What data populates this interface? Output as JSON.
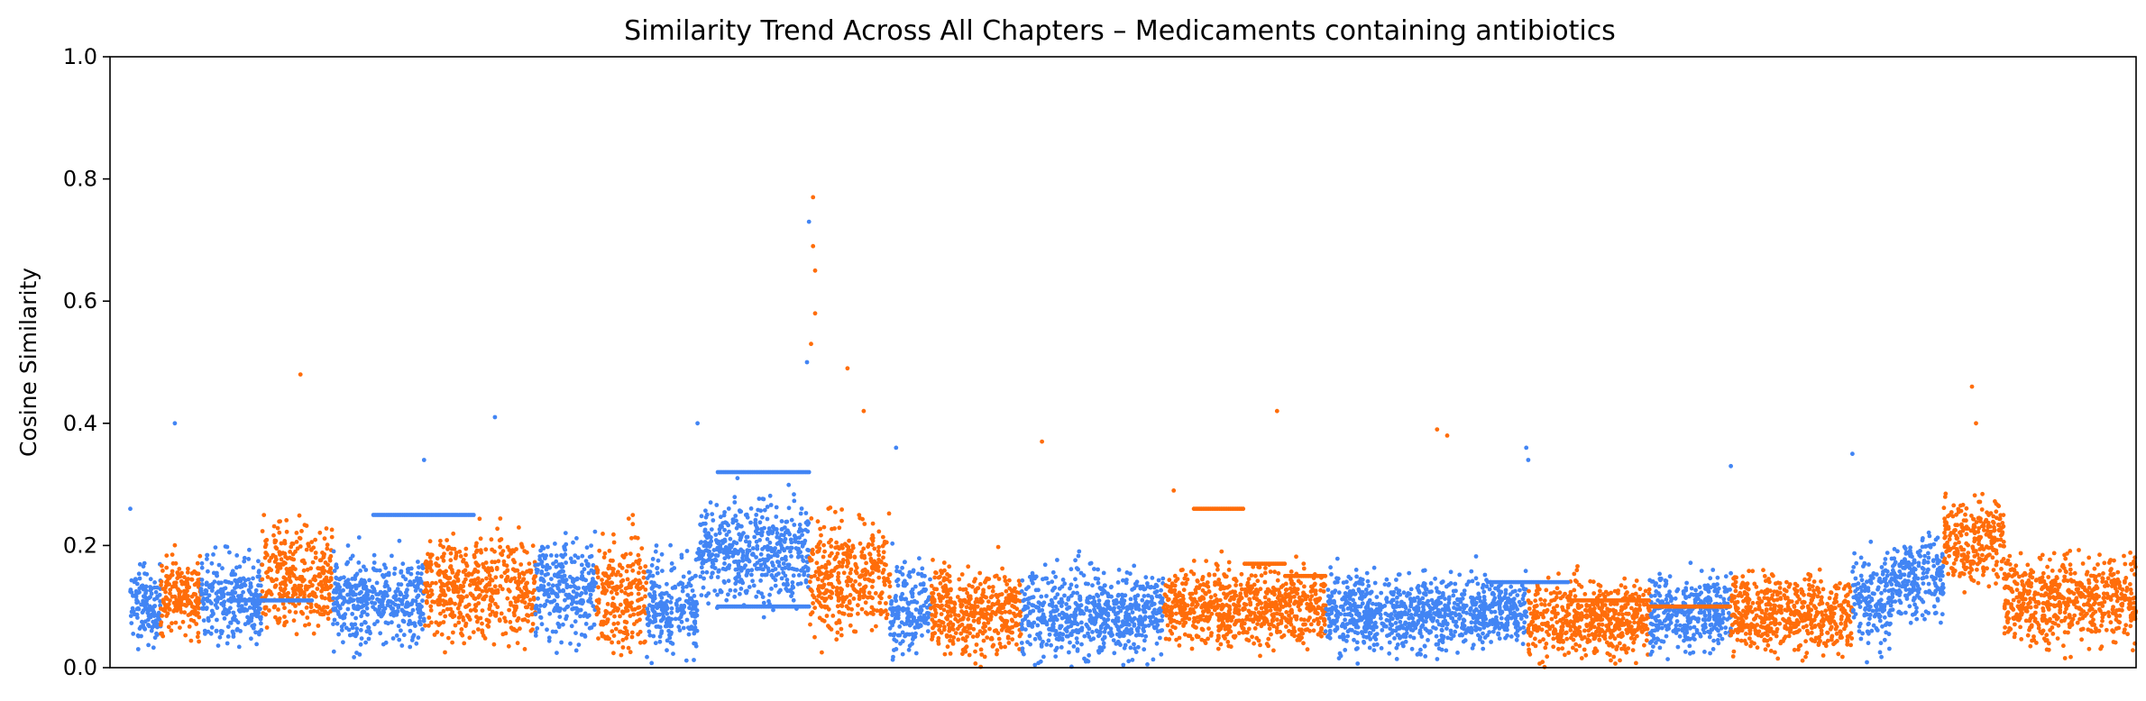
{
  "chart_data": {
    "type": "scatter",
    "title": "Similarity Trend Across All Chapters – Medicaments containing antibiotics",
    "xlabel": "",
    "ylabel": "Cosine Similarity",
    "ylim": [
      0,
      1
    ],
    "yticks": [
      {
        "value": 0.0,
        "label": "0.0"
      },
      {
        "value": 0.2,
        "label": "0.2"
      },
      {
        "value": 0.4,
        "label": "0.4"
      },
      {
        "value": 0.6,
        "label": "0.6"
      },
      {
        "value": 0.8,
        "label": "0.8"
      },
      {
        "value": 1.0,
        "label": "1.0"
      }
    ],
    "xlim": [
      0,
      1000
    ],
    "grid": false,
    "legend": "none",
    "colors": {
      "blue": "#4285f4",
      "orange": "#ff6d0a"
    },
    "series": [
      {
        "name": "chapter-group-blue",
        "color": "#4285f4"
      },
      {
        "name": "chapter-group-orange",
        "color": "#ff6d0a"
      }
    ],
    "segments": [
      {
        "x": [
          10,
          25
        ],
        "center": 0.1,
        "spread": 0.06,
        "color": "blue"
      },
      {
        "x": [
          25,
          45
        ],
        "center": 0.12,
        "spread": 0.06,
        "color": "orange"
      },
      {
        "x": [
          45,
          75
        ],
        "center": 0.11,
        "spread": 0.07,
        "color": "blue"
      },
      {
        "x": [
          75,
          110
        ],
        "center": 0.15,
        "spread": 0.08,
        "color": "orange"
      },
      {
        "x": [
          110,
          155
        ],
        "center": 0.11,
        "spread": 0.07,
        "color": "blue"
      },
      {
        "x": [
          155,
          210
        ],
        "center": 0.13,
        "spread": 0.08,
        "color": "orange"
      },
      {
        "x": [
          210,
          240
        ],
        "center": 0.13,
        "spread": 0.08,
        "color": "blue"
      },
      {
        "x": [
          240,
          265
        ],
        "center": 0.12,
        "spread": 0.09,
        "color": "orange"
      },
      {
        "x": [
          265,
          290
        ],
        "center": 0.1,
        "spread": 0.08,
        "color": "blue"
      },
      {
        "x": [
          290,
          345
        ],
        "center": 0.19,
        "spread": 0.08,
        "color": "blue"
      },
      {
        "x": [
          345,
          385
        ],
        "center": 0.15,
        "spread": 0.09,
        "color": "orange"
      },
      {
        "x": [
          385,
          405
        ],
        "center": 0.1,
        "spread": 0.07,
        "color": "blue"
      },
      {
        "x": [
          405,
          450
        ],
        "center": 0.09,
        "spread": 0.07,
        "color": "orange"
      },
      {
        "x": [
          450,
          520
        ],
        "center": 0.09,
        "spread": 0.07,
        "color": "blue"
      },
      {
        "x": [
          520,
          600
        ],
        "center": 0.1,
        "spread": 0.06,
        "color": "orange"
      },
      {
        "x": [
          600,
          700
        ],
        "center": 0.09,
        "spread": 0.06,
        "color": "blue"
      },
      {
        "x": [
          700,
          760
        ],
        "center": 0.08,
        "spread": 0.06,
        "color": "orange"
      },
      {
        "x": [
          760,
          800
        ],
        "center": 0.09,
        "spread": 0.06,
        "color": "blue"
      },
      {
        "x": [
          800,
          860
        ],
        "center": 0.09,
        "spread": 0.06,
        "color": "orange"
      },
      {
        "x": [
          860,
          880
        ],
        "center": 0.11,
        "spread": 0.07,
        "color": "blue"
      },
      {
        "x": [
          880,
          905
        ],
        "center": 0.15,
        "spread": 0.07,
        "color": "blue"
      },
      {
        "x": [
          905,
          935
        ],
        "center": 0.21,
        "spread": 0.07,
        "color": "orange"
      },
      {
        "x": [
          935,
          1000
        ],
        "center": 0.11,
        "spread": 0.07,
        "color": "orange"
      }
    ],
    "outliers": [
      {
        "x": 10,
        "y": 0.26,
        "color": "blue"
      },
      {
        "x": 32,
        "y": 0.4,
        "color": "blue"
      },
      {
        "x": 94,
        "y": 0.48,
        "color": "orange"
      },
      {
        "x": 155,
        "y": 0.34,
        "color": "blue"
      },
      {
        "x": 190,
        "y": 0.41,
        "color": "blue"
      },
      {
        "x": 290,
        "y": 0.4,
        "color": "blue"
      },
      {
        "x": 347,
        "y": 0.77,
        "color": "orange"
      },
      {
        "x": 347,
        "y": 0.69,
        "color": "orange"
      },
      {
        "x": 348,
        "y": 0.65,
        "color": "orange"
      },
      {
        "x": 345,
        "y": 0.73,
        "color": "blue"
      },
      {
        "x": 348,
        "y": 0.58,
        "color": "orange"
      },
      {
        "x": 346,
        "y": 0.53,
        "color": "orange"
      },
      {
        "x": 344,
        "y": 0.5,
        "color": "blue"
      },
      {
        "x": 364,
        "y": 0.49,
        "color": "orange"
      },
      {
        "x": 372,
        "y": 0.42,
        "color": "orange"
      },
      {
        "x": 388,
        "y": 0.36,
        "color": "blue"
      },
      {
        "x": 460,
        "y": 0.37,
        "color": "orange"
      },
      {
        "x": 525,
        "y": 0.29,
        "color": "orange"
      },
      {
        "x": 576,
        "y": 0.42,
        "color": "orange"
      },
      {
        "x": 655,
        "y": 0.39,
        "color": "orange"
      },
      {
        "x": 660,
        "y": 0.38,
        "color": "orange"
      },
      {
        "x": 699,
        "y": 0.36,
        "color": "blue"
      },
      {
        "x": 700,
        "y": 0.34,
        "color": "blue"
      },
      {
        "x": 800,
        "y": 0.33,
        "color": "blue"
      },
      {
        "x": 860,
        "y": 0.35,
        "color": "blue"
      },
      {
        "x": 919,
        "y": 0.46,
        "color": "orange"
      },
      {
        "x": 921,
        "y": 0.4,
        "color": "orange"
      }
    ],
    "bands": [
      {
        "x": [
          300,
          345
        ],
        "y": 0.32,
        "color": "blue"
      },
      {
        "x": [
          300,
          345
        ],
        "y": 0.1,
        "color": "blue"
      },
      {
        "x": [
          535,
          560
        ],
        "y": 0.26,
        "color": "orange"
      },
      {
        "x": [
          560,
          580
        ],
        "y": 0.17,
        "color": "orange"
      },
      {
        "x": [
          580,
          600
        ],
        "y": 0.15,
        "color": "orange"
      },
      {
        "x": [
          680,
          720
        ],
        "y": 0.14,
        "color": "blue"
      },
      {
        "x": [
          720,
          760
        ],
        "y": 0.11,
        "color": "orange"
      },
      {
        "x": [
          760,
          800
        ],
        "y": 0.1,
        "color": "orange"
      },
      {
        "x": [
          130,
          180
        ],
        "y": 0.25,
        "color": "blue"
      },
      {
        "x": [
          60,
          100
        ],
        "y": 0.11,
        "color": "blue"
      }
    ]
  }
}
